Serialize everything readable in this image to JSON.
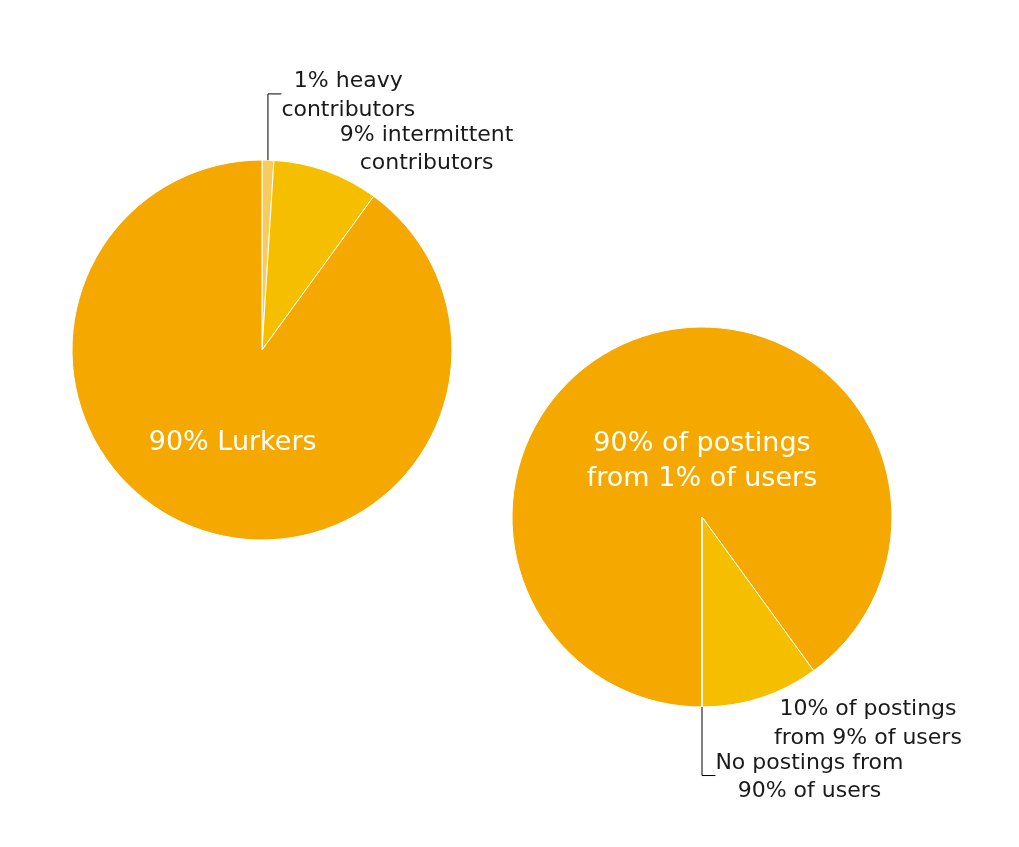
{
  "chart_data": [
    {
      "type": "pie",
      "categories": [
        "1% heavy contributors",
        "9% intermittent contributors",
        "90% Lurkers"
      ],
      "values": [
        1,
        9,
        90
      ],
      "colors": [
        "#f8cc5c",
        "#f5bf00",
        "#f5a800"
      ]
    },
    {
      "type": "pie",
      "categories": [
        "90% of postings from 1% of users",
        "10% of postings from 9% of users",
        "No postings from 90% of users"
      ],
      "values": [
        90,
        10,
        0
      ],
      "colors": [
        "#f5a800",
        "#f5bf00",
        "#f5a800"
      ]
    }
  ]
}
